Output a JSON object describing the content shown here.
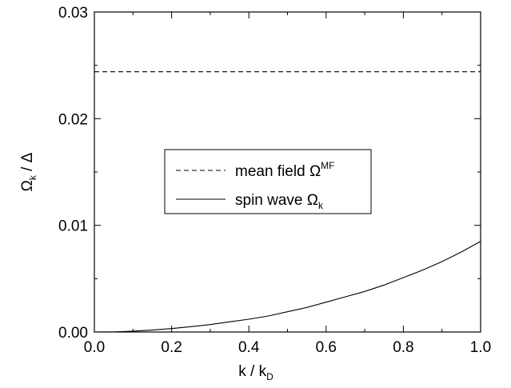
{
  "chart_data": {
    "type": "line",
    "xlabel": {
      "main": "k / k",
      "sub": "D"
    },
    "ylabel": {
      "main": "Ω",
      "sub": "k",
      "rest": " / Δ"
    },
    "xlim": [
      0.0,
      1.0
    ],
    "ylim": [
      0.0,
      0.03
    ],
    "x_ticks": [
      "0.0",
      "0.2",
      "0.4",
      "0.6",
      "0.8",
      "1.0"
    ],
    "y_ticks": [
      "0.00",
      "0.01",
      "0.02",
      "0.03"
    ],
    "grid": false,
    "legend_position": "center",
    "series": [
      {
        "name": {
          "main": "mean field Ω",
          "sup": "MF"
        },
        "style": "dashed",
        "x": [
          0.0,
          1.0
        ],
        "y": [
          0.0244,
          0.0244
        ]
      },
      {
        "name": {
          "main": "spin wave Ω",
          "sub": "k"
        },
        "style": "solid",
        "x": [
          0.0,
          0.05,
          0.1,
          0.15,
          0.2,
          0.25,
          0.3,
          0.35,
          0.4,
          0.45,
          0.5,
          0.55,
          0.6,
          0.65,
          0.7,
          0.75,
          0.8,
          0.85,
          0.9,
          0.95,
          1.0
        ],
        "y": [
          0.0,
          1e-05,
          8e-05,
          0.00018,
          0.00032,
          0.0005,
          0.0007,
          0.00095,
          0.0012,
          0.0015,
          0.0019,
          0.0023,
          0.0028,
          0.0033,
          0.0038,
          0.0044,
          0.0051,
          0.0058,
          0.0066,
          0.0075,
          0.0085
        ]
      }
    ],
    "colors": {
      "line": "#000000",
      "background": "#ffffff"
    }
  }
}
